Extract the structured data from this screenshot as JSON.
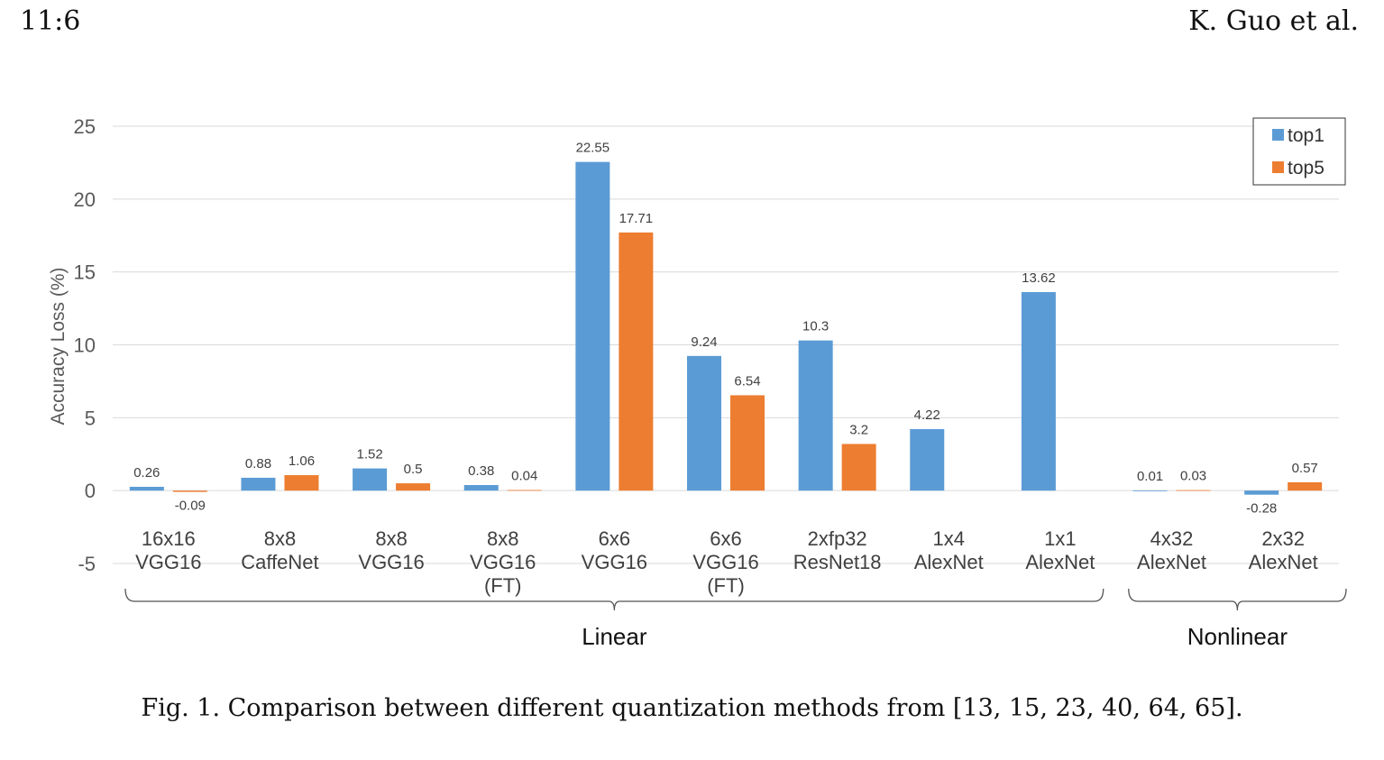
{
  "header": {
    "page_number": "11:6",
    "running_head": "K. Guo et al."
  },
  "caption": "Fig. 1.  Comparison between different quantization methods from [13, 15, 23, 40, 64, 65].",
  "colors": {
    "top1": "#5b9bd5",
    "top5": "#ed7d31",
    "grid": "#d9d9d9",
    "axis_text": "#595959"
  },
  "chart_data": {
    "type": "bar",
    "ylabel": "Accuracy Loss (%)",
    "ylim": [
      -5,
      25
    ],
    "yticks": [
      -5,
      0,
      5,
      10,
      15,
      20,
      25
    ],
    "grid": true,
    "legend_position": "top-right",
    "categories": [
      [
        "16x16",
        "VGG16"
      ],
      [
        "8x8",
        "CaffeNet"
      ],
      [
        "8x8",
        "VGG16"
      ],
      [
        "8x8",
        "VGG16",
        "(FT)"
      ],
      [
        "6x6",
        "VGG16"
      ],
      [
        "6x6",
        "VGG16",
        "(FT)"
      ],
      [
        "2xfp32",
        "ResNet18"
      ],
      [
        "1x4",
        "AlexNet"
      ],
      [
        "1x1",
        "AlexNet"
      ],
      [
        "4x32",
        "AlexNet"
      ],
      [
        "2x32",
        "AlexNet"
      ]
    ],
    "series": [
      {
        "name": "top1",
        "values": [
          0.26,
          0.88,
          1.52,
          0.38,
          22.55,
          9.24,
          10.3,
          4.22,
          13.62,
          0.01,
          -0.28
        ],
        "labels": [
          "0.26",
          "0.88",
          "1.52",
          "0.38",
          "22.55",
          "9.24",
          "10.3",
          "4.22",
          "13.62",
          "0.01",
          "-0.28"
        ]
      },
      {
        "name": "top5",
        "values": [
          -0.09,
          1.06,
          0.5,
          0.04,
          17.71,
          6.54,
          3.2,
          null,
          null,
          0.03,
          0.57
        ],
        "labels": [
          "-0.09",
          "1.06",
          "0.5",
          "0.04",
          "17.71",
          "6.54",
          "3.2",
          null,
          null,
          "0.03",
          "0.57"
        ]
      }
    ],
    "groups": [
      {
        "label": "Linear",
        "start": 0,
        "end": 8
      },
      {
        "label": "Nonlinear",
        "start": 9,
        "end": 10
      }
    ]
  }
}
